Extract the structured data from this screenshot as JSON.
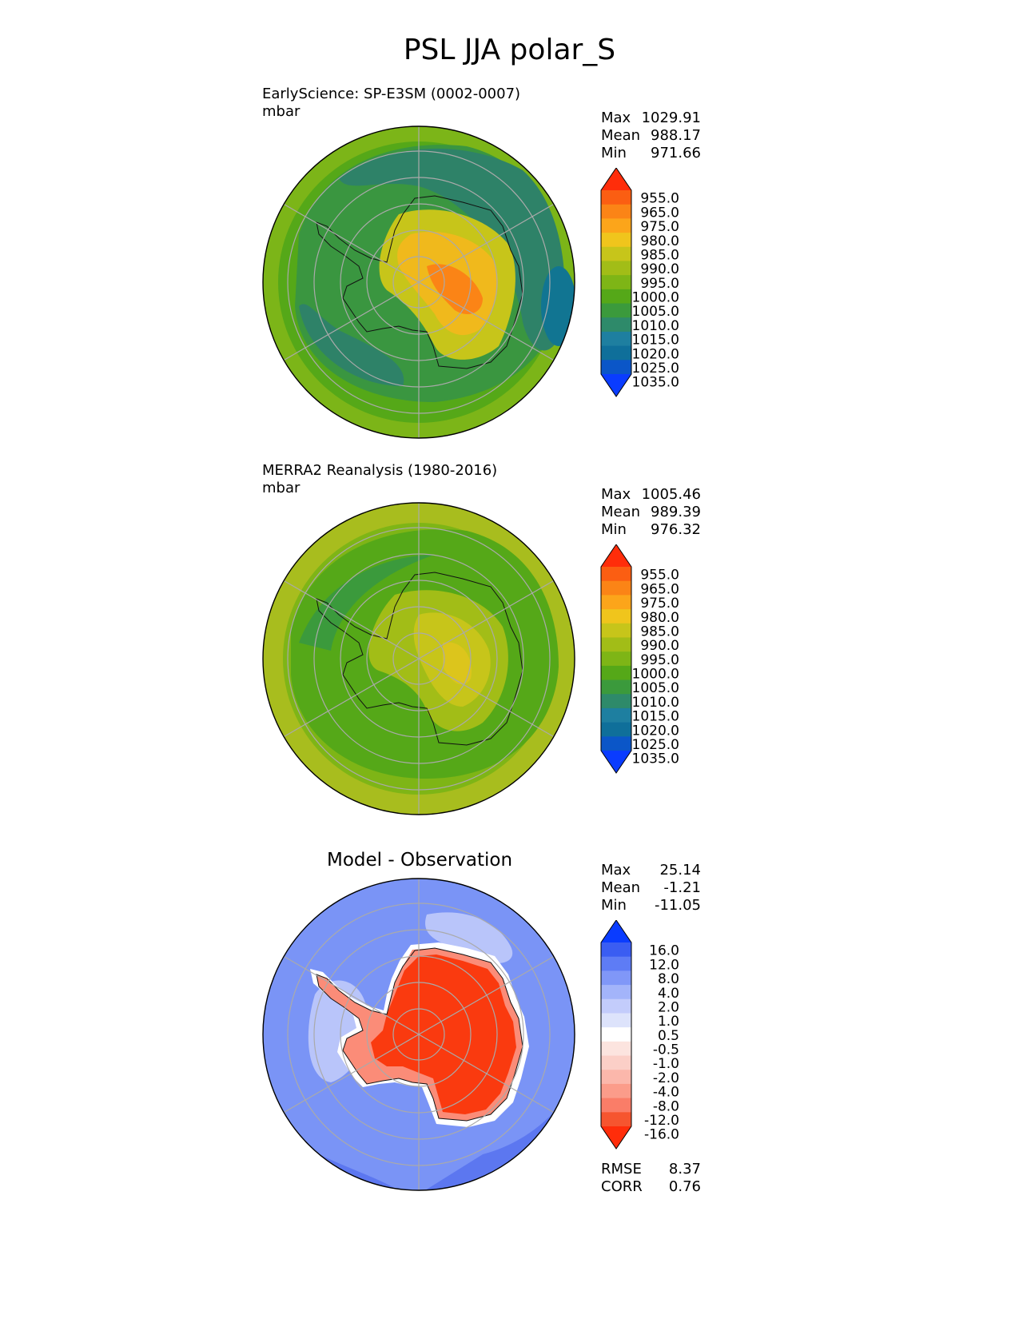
{
  "title": "PSL JJA polar_S",
  "panels": [
    {
      "subtitle": "EarlyScience: SP-E3SM (0002-0007)",
      "units": "mbar",
      "stats": [
        {
          "label": "Max",
          "value": "1029.91"
        },
        {
          "label": "Mean",
          "value": "988.17"
        },
        {
          "label": "Min",
          "value": "971.66"
        }
      ]
    },
    {
      "subtitle": "MERRA2 Reanalysis (1980-2016)",
      "units": "mbar",
      "stats": [
        {
          "label": "Max",
          "value": "1005.46"
        },
        {
          "label": "Mean",
          "value": "989.39"
        },
        {
          "label": "Min",
          "value": "976.32"
        }
      ]
    },
    {
      "title": "Model - Observation",
      "stats": [
        {
          "label": "Max",
          "value": "25.14"
        },
        {
          "label": "Mean",
          "value": "-1.21"
        },
        {
          "label": "Min",
          "value": "-11.05"
        }
      ],
      "metrics": [
        {
          "label": "RMSE",
          "value": "8.37"
        },
        {
          "label": "CORR",
          "value": "0.76"
        }
      ]
    }
  ],
  "chart_data": [
    {
      "type": "heatmap",
      "projection": "south-polar-stereographic",
      "colorbar_levels": [
        "955.0",
        "965.0",
        "975.0",
        "980.0",
        "985.0",
        "990.0",
        "995.0",
        "1000.0",
        "1005.0",
        "1010.0",
        "1015.0",
        "1020.0",
        "1025.0",
        "1035.0"
      ],
      "colorbar_colors": [
        "#0a3cff",
        "#0b56c8",
        "#0f6f9a",
        "#1e7fa0",
        "#2e8a6a",
        "#3b9a3c",
        "#55a818",
        "#7eb516",
        "#a2bd17",
        "#c7c51a",
        "#f0c51c",
        "#fca51a",
        "#fb8416",
        "#fb5e12",
        "#ff2d0a"
      ],
      "field_colors": {
        "ocean_far": "#7cb518",
        "ocean_mid": "#55a818",
        "ocean_band": "#3a9640",
        "trough": "#2e8268",
        "trough_deep": "#117592",
        "continent": "#c7c51a",
        "plateau": "#f0b91c",
        "core": "#fb8416"
      }
    },
    {
      "type": "heatmap",
      "projection": "south-polar-stereographic",
      "colorbar_levels": [
        "955.0",
        "965.0",
        "975.0",
        "980.0",
        "985.0",
        "990.0",
        "995.0",
        "1000.0",
        "1005.0",
        "1010.0",
        "1015.0",
        "1020.0",
        "1025.0",
        "1035.0"
      ],
      "colorbar_colors": [
        "#0a3cff",
        "#0b56c8",
        "#0f6f9a",
        "#1e7fa0",
        "#2e8a6a",
        "#3b9a3c",
        "#55a818",
        "#7eb516",
        "#a2bd17",
        "#c7c51a",
        "#f0c51c",
        "#fca51a",
        "#fb8416",
        "#fb5e12",
        "#ff2d0a"
      ],
      "field_colors": {
        "ocean_far": "#a8bd1e",
        "ocean_mid": "#7eb516",
        "ocean_band": "#55a818",
        "trough": "#3b9a3c",
        "trough_deep": "#3a9640",
        "continent": "#a2bd17",
        "plateau": "#c7c51a",
        "core": "#dcc51c"
      }
    },
    {
      "type": "heatmap",
      "projection": "south-polar-stereographic",
      "colorbar_levels": [
        "16.0",
        "12.0",
        "8.0",
        "4.0",
        "2.0",
        "1.0",
        "0.5",
        "-0.5",
        "-1.0",
        "-2.0",
        "-4.0",
        "-8.0",
        "-12.0",
        "-16.0"
      ],
      "colorbar_colors": [
        "#ff2d0a",
        "#f6552f",
        "#fa7d68",
        "#fb9c8a",
        "#fbb7ab",
        "#fbcfc7",
        "#fce4df",
        "#ffffff",
        "#dde3fb",
        "#c3ccfb",
        "#a3b4fa",
        "#8097f8",
        "#5e7cf5",
        "#3a5df2",
        "#0a3cff"
      ],
      "field_colors": {
        "ocean": "#7a94f6",
        "ocean_deep": "#5c77f0",
        "pale": "#b9c5fa",
        "continent": "#fa3a0f",
        "edge": "#fb8c78",
        "rim": "#ffffff"
      }
    }
  ]
}
